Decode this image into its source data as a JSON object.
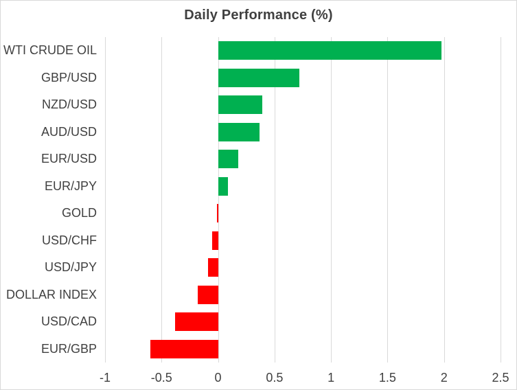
{
  "chart_data": {
    "type": "bar",
    "orientation": "horizontal",
    "title": "Daily Performance (%)",
    "categories": [
      "WTI CRUDE OIL",
      "GBP/USD",
      "NZD/USD",
      "AUD/USD",
      "EUR/USD",
      "EUR/JPY",
      "GOLD",
      "USD/CHF",
      "USD/JPY",
      "DOLLAR INDEX",
      "USD/CAD",
      "EUR/GBP"
    ],
    "values": [
      1.98,
      0.72,
      0.39,
      0.37,
      0.18,
      0.09,
      -0.01,
      -0.05,
      -0.09,
      -0.18,
      -0.38,
      -0.6
    ],
    "xlabel": "",
    "ylabel": "",
    "xlim": [
      -1,
      2.5
    ],
    "x_ticks": [
      -1,
      -0.5,
      0,
      0.5,
      1,
      1.5,
      2,
      2.5
    ],
    "x_tick_labels": [
      "-1",
      "-0.5",
      "0",
      "0.5",
      "1",
      "1.5",
      "2",
      "2.5"
    ],
    "grid": "vertical",
    "legend": "none",
    "colors": {
      "positive": "#00B050",
      "negative": "#FF0000",
      "gridline": "#D9D9D9",
      "text": "#404040",
      "border": "#D9D9D9",
      "background": "#FFFFFF"
    }
  }
}
